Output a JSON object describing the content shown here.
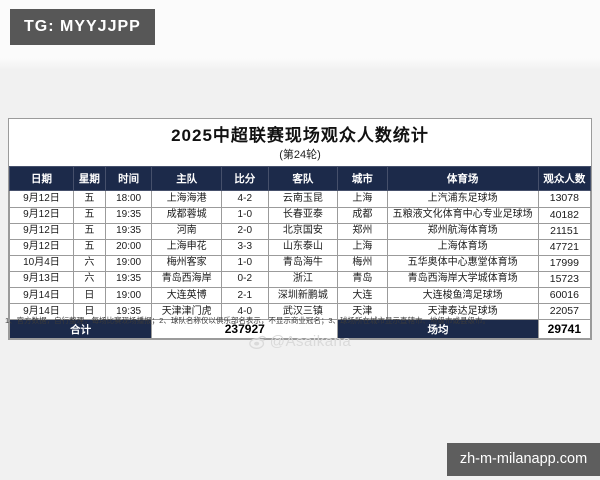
{
  "badge": {
    "text": "TG: MYYJJPP"
  },
  "colors": {
    "header_navy": "#1c2a4a",
    "badge_gray": "#575757",
    "watermark_box_gray": "#5e5e5e",
    "grid_line": "#9b9b9b"
  },
  "table": {
    "title": "2025中超联赛现场观众人数统计",
    "subtitle": "(第24轮)",
    "columns": [
      "日期",
      "星期",
      "时间",
      "主队",
      "比分",
      "客队",
      "城市",
      "体育场",
      "观众人数"
    ],
    "rows": [
      [
        "9月12日",
        "五",
        "18:00",
        "上海海港",
        "4-2",
        "云南玉昆",
        "上海",
        "上汽浦东足球场",
        "13078"
      ],
      [
        "9月12日",
        "五",
        "19:35",
        "成都蓉城",
        "1-0",
        "长春亚泰",
        "成都",
        "五粮液文化体育中心专业足球场",
        "40182"
      ],
      [
        "9月12日",
        "五",
        "19:35",
        "河南",
        "2-0",
        "北京国安",
        "郑州",
        "郑州航海体育场",
        "21151"
      ],
      [
        "9月12日",
        "五",
        "20:00",
        "上海申花",
        "3-3",
        "山东泰山",
        "上海",
        "上海体育场",
        "47721"
      ],
      [
        "10月4日",
        "六",
        "19:00",
        "梅州客家",
        "1-0",
        "青岛海牛",
        "梅州",
        "五华奥体中心惠堂体育场",
        "17999"
      ],
      [
        "9月13日",
        "六",
        "19:35",
        "青岛西海岸",
        "0-2",
        "浙江",
        "青岛",
        "青岛西海岸大学城体育场",
        "15723"
      ],
      [
        "9月14日",
        "日",
        "19:00",
        "大连英博",
        "2-1",
        "深圳新鹏城",
        "大连",
        "大连梭鱼湾足球场",
        "60016"
      ],
      [
        "9月14日",
        "日",
        "19:35",
        "天津津门虎",
        "4-0",
        "武汉三镇",
        "天津",
        "天津泰达足球场",
        "22057"
      ]
    ],
    "footer": {
      "total_label": "合计",
      "total_value": "237927",
      "average_label": "场均",
      "average_value": "29741"
    }
  },
  "footnote": "1、官方数据，自行整理，每场比赛现场播报；2、球队名称仅以俱乐部名表示，不显示商业冠名；3、球场所在城市显示直辖市、地级市或县级市。",
  "watermark": {
    "author": "@Asaikana",
    "icon": "weibo-icon"
  },
  "site_watermark": {
    "text": "zh-m-milanapp.com"
  }
}
